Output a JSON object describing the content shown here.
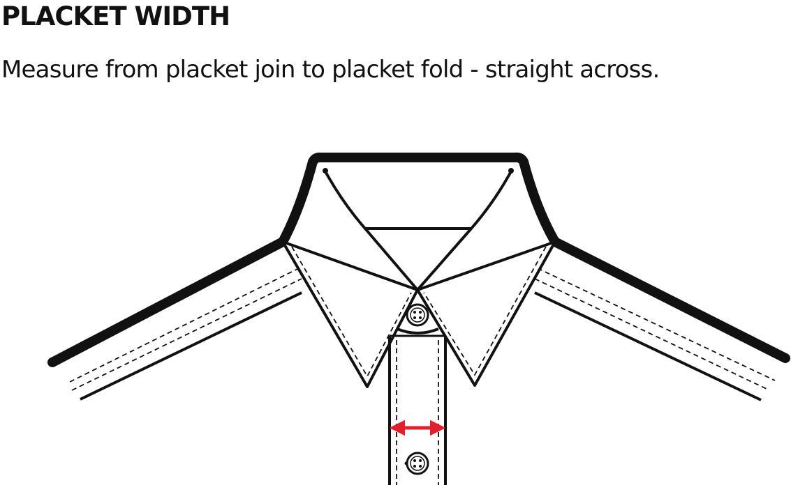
{
  "header": {
    "title": "PLACKET WIDTH",
    "instruction": "Measure from placket join to placket fold - straight across."
  },
  "illustration": {
    "subject": "shirt-collar-with-placket",
    "measurement_arrow_color": "#e0202c",
    "line_color": "#111111",
    "button_count": 2
  }
}
